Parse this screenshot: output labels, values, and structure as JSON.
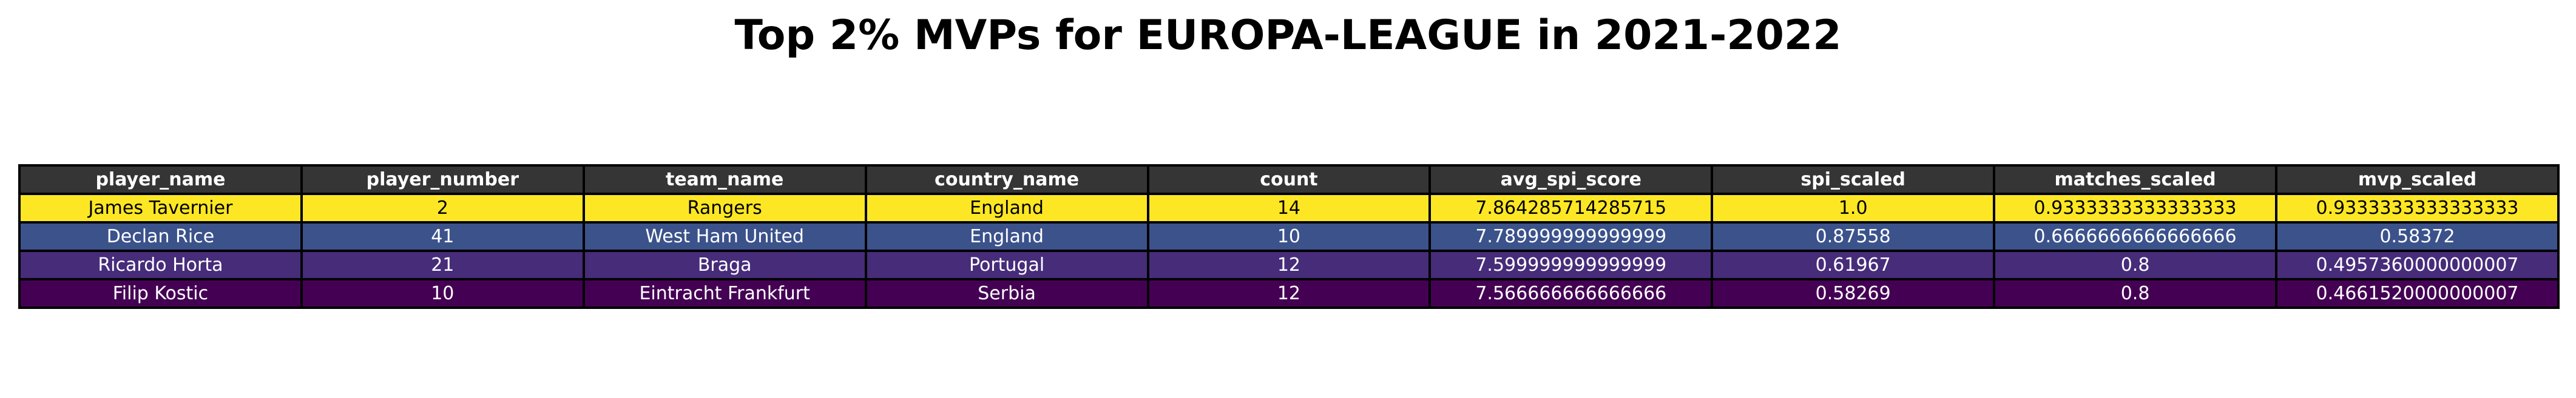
{
  "title": "Top 2% MVPs for EUROPA-LEAGUE in 2021-2022",
  "colors": {
    "header_bg": "#353535",
    "header_text": "#ffffff",
    "border": "#000000",
    "row_colors": [
      "#FDE724",
      "#3B528B",
      "#472C7A",
      "#440154"
    ],
    "row_text": [
      "#000000",
      "#ffffff",
      "#ffffff",
      "#ffffff"
    ]
  },
  "chart_data": {
    "type": "table",
    "title": "Top 2% MVPs for EUROPA-LEAGUE in 2021-2022",
    "columns": [
      "player_name",
      "player_number",
      "team_name",
      "country_name",
      "count",
      "avg_spi_score",
      "spi_scaled",
      "matches_scaled",
      "mvp_scaled"
    ],
    "rows": [
      [
        "James Tavernier",
        "2",
        "Rangers",
        "England",
        "14",
        "7.864285714285715",
        "1.0",
        "0.9333333333333333",
        "0.9333333333333333"
      ],
      [
        "Declan Rice",
        "41",
        "West Ham United",
        "England",
        "10",
        "7.789999999999999",
        "0.87558",
        "0.6666666666666666",
        "0.58372"
      ],
      [
        "Ricardo Horta",
        "21",
        "Braga",
        "Portugal",
        "12",
        "7.599999999999999",
        "0.61967",
        "0.8",
        "0.4957360000000007"
      ],
      [
        "Filip Kostic",
        "10",
        "Eintracht Frankfurt",
        "Serbia",
        "12",
        "7.566666666666666",
        "0.58269",
        "0.8",
        "0.4661520000000007"
      ]
    ]
  }
}
